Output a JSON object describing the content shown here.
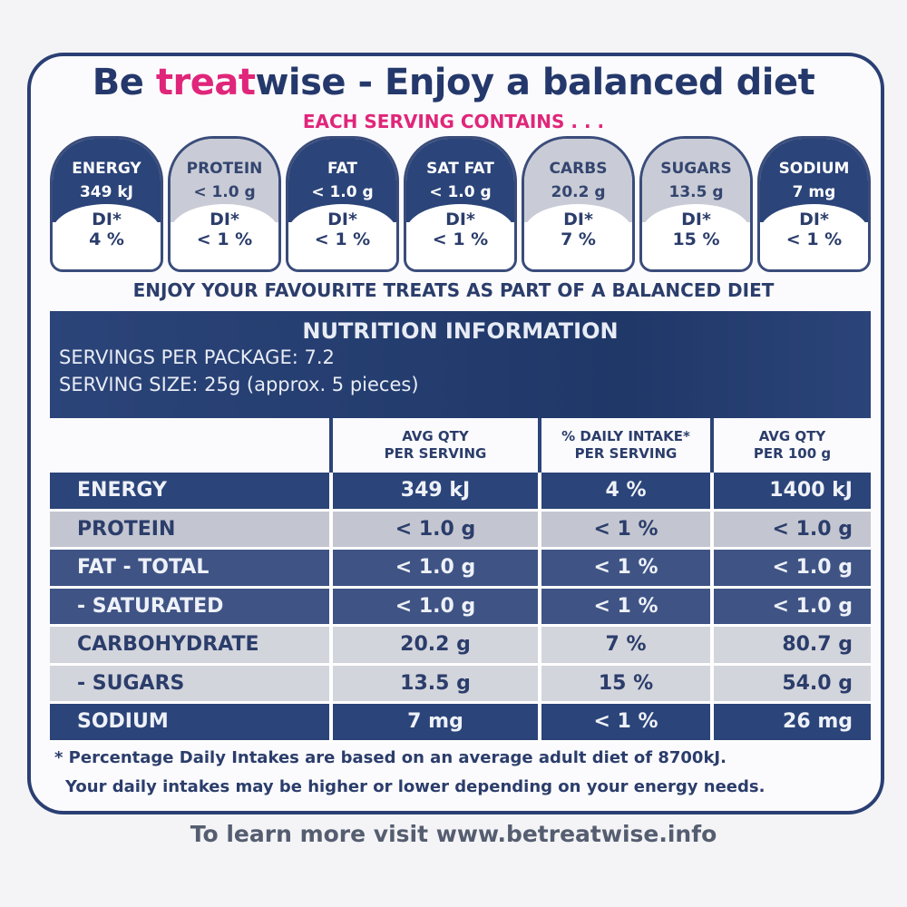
{
  "header": {
    "title_pre": "Be ",
    "title_brand": "treat",
    "title_post": "wise - Enjoy a balanced diet",
    "subtitle": "EACH SERVING CONTAINS . . ."
  },
  "badges": [
    {
      "name": "ENERGY",
      "value": "349 kJ",
      "di_label": "DI*",
      "di": "4 %",
      "style": "dark"
    },
    {
      "name": "PROTEIN",
      "value": "< 1.0 g",
      "di_label": "DI*",
      "di": "< 1 %",
      "style": "light"
    },
    {
      "name": "FAT",
      "value": "< 1.0 g",
      "di_label": "DI*",
      "di": "< 1 %",
      "style": "dark"
    },
    {
      "name": "SAT FAT",
      "value": "< 1.0 g",
      "di_label": "DI*",
      "di": "< 1 %",
      "style": "dark"
    },
    {
      "name": "CARBS",
      "value": "20.2 g",
      "di_label": "DI*",
      "di": "7 %",
      "style": "light"
    },
    {
      "name": "SUGARS",
      "value": "13.5 g",
      "di_label": "DI*",
      "di": "15 %",
      "style": "light"
    },
    {
      "name": "SODIUM",
      "value": "7 mg",
      "di_label": "DI*",
      "di": "< 1 %",
      "style": "dark"
    }
  ],
  "enjoy": "ENJOY YOUR FAVOURITE TREATS AS PART OF A BALANCED DIET",
  "nutrition": {
    "heading": "NUTRITION INFORMATION",
    "servings": "SERVINGS PER PACKAGE: 7.2",
    "serving_size": "SERVING SIZE: 25g (approx. 5 pieces)",
    "columns": [
      "AVG QTY\nPER SERVING",
      "% DAILY INTAKE*\nPER SERVING",
      "AVG QTY\nPER 100 g"
    ],
    "rows": [
      {
        "label": "ENERGY",
        "per_serving": "349 kJ",
        "di": "4 %",
        "per_100g": "1400 kJ",
        "style": "dark"
      },
      {
        "label": "PROTEIN",
        "per_serving": "< 1.0 g",
        "di": "< 1 %",
        "per_100g": "< 1.0 g",
        "style": "light"
      },
      {
        "label": "FAT - TOTAL",
        "per_serving": "< 1.0 g",
        "di": "< 1 %",
        "per_100g": "< 1.0 g",
        "style": "mid"
      },
      {
        "label": "- SATURATED",
        "per_serving": "< 1.0 g",
        "di": "< 1 %",
        "per_100g": "< 1.0 g",
        "style": "mid"
      },
      {
        "label": "CARBOHYDRATE",
        "per_serving": "20.2 g",
        "di": "7 %",
        "per_100g": "80.7 g",
        "style": "lighter"
      },
      {
        "label": "- SUGARS",
        "per_serving": "13.5 g",
        "di": "15 %",
        "per_100g": "54.0 g",
        "style": "lighter"
      },
      {
        "label": "SODIUM",
        "per_serving": "7 mg",
        "di": "< 1 %",
        "per_100g": "26 mg",
        "style": "dark"
      }
    ]
  },
  "footnote1": "* Percentage Daily Intakes are based on an average adult diet of 8700kJ.",
  "footnote2": "Your daily intakes may be higher or lower depending on your energy needs.",
  "url_text": "To learn more visit www.betreatwise.info"
}
